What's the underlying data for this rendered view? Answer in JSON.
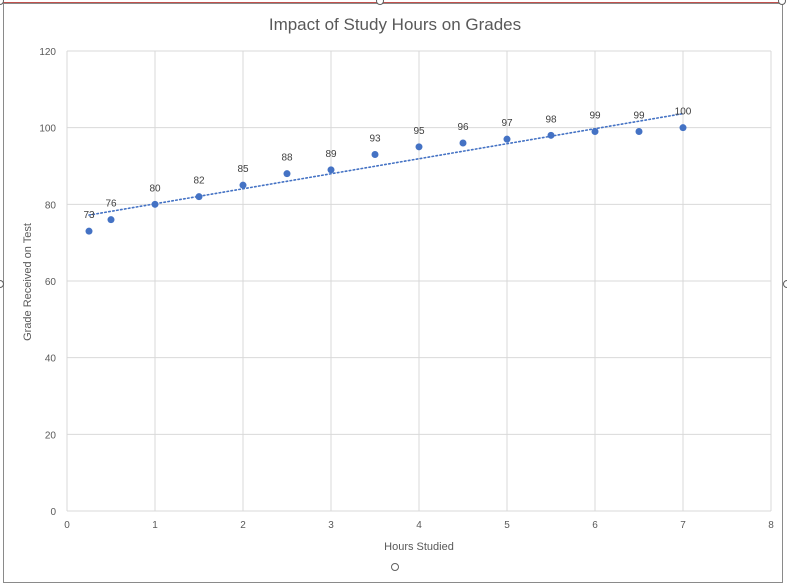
{
  "chart_data": {
    "type": "scatter",
    "title": "Impact of Study Hours on Grades",
    "xlabel": "Hours Studied",
    "ylabel": "Grade Received on Test",
    "xlim": [
      0,
      8
    ],
    "ylim": [
      0,
      120
    ],
    "x_ticks": [
      "0",
      "1",
      "2",
      "3",
      "4",
      "5",
      "6",
      "7",
      "8"
    ],
    "y_ticks": [
      "0",
      "20",
      "40",
      "60",
      "80",
      "100",
      "120"
    ],
    "grid": true,
    "legend": "none",
    "series": [
      {
        "x": [
          0.25,
          0.5,
          1,
          1.5,
          2,
          2.5,
          3,
          3.5,
          4,
          4.5,
          5,
          5.5,
          6,
          6.5,
          7
        ],
        "y": [
          73,
          76,
          80,
          82,
          85,
          88,
          89,
          93,
          95,
          96,
          97,
          98,
          99,
          99,
          100
        ],
        "labels": [
          "73",
          "76",
          "80",
          "82",
          "85",
          "88",
          "89",
          "93",
          "95",
          "96",
          "97",
          "98",
          "99",
          "99",
          "100"
        ],
        "color": "#4472c4"
      }
    ],
    "trendline": {
      "type": "linear",
      "style": "dotted",
      "color": "#4472c4"
    }
  }
}
